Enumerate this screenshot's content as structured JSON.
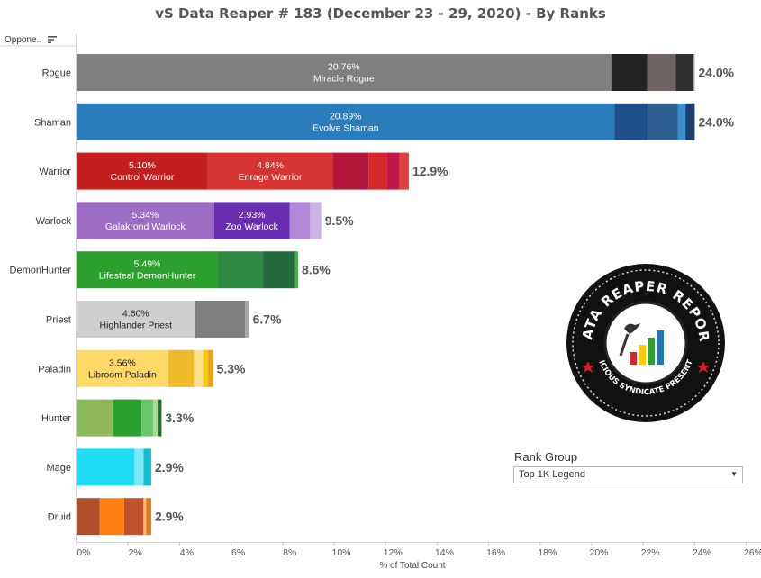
{
  "title": "vS Data Reaper #  183 (December 23 - 29, 2020) - By Ranks",
  "row_header": "Oppone..",
  "rank_group": {
    "label": "Rank Group",
    "selected": "Top 1K Legend"
  },
  "logo": {
    "text_top": "DATA REAPER REPORT",
    "text_bottom": "VICIOUS SYNDICATE PRESENTS"
  },
  "chart_data": {
    "type": "bar",
    "orientation": "horizontal",
    "stacked": true,
    "title": "vS Data Reaper #  183 (December 23 - 29, 2020) - By Ranks",
    "xlabel": "% of Total Count",
    "ylabel": "",
    "xlim": [
      0,
      26
    ],
    "xticks": [
      "0%",
      "2%",
      "4%",
      "6%",
      "8%",
      "10%",
      "12%",
      "14%",
      "16%",
      "18%",
      "20%",
      "22%",
      "24%",
      "26%"
    ],
    "grid": false,
    "categories": [
      "Rogue",
      "Shaman",
      "Warrior",
      "Warlock",
      "DemonHunter",
      "Priest",
      "Paladin",
      "Hunter",
      "Mage",
      "Druid"
    ],
    "totals": [
      "24.0%",
      "24.0%",
      "12.9%",
      "9.5%",
      "8.6%",
      "6.7%",
      "5.3%",
      "3.3%",
      "2.9%",
      "2.9%"
    ],
    "rows": [
      {
        "segments": [
          {
            "value": 20.76,
            "color": "#7f7f7f",
            "label_pct": "20.76%",
            "label_name": "Miracle Rogue",
            "text_color": "#ffffff"
          },
          {
            "value": 1.4,
            "color": "#222222"
          },
          {
            "value": 1.1,
            "color": "#6e6462"
          },
          {
            "value": 0.7,
            "color": "#2f2f2f"
          },
          {
            "value": 0.04,
            "color": "#aaaaaa"
          }
        ]
      },
      {
        "segments": [
          {
            "value": 20.89,
            "color": "#2a7cba",
            "label_pct": "20.89%",
            "label_name": "Evolve Shaman",
            "text_color": "#ffffff"
          },
          {
            "value": 1.3,
            "color": "#1f4e8c"
          },
          {
            "value": 1.15,
            "color": "#2e5e90"
          },
          {
            "value": 0.3,
            "color": "#3a8fd0"
          },
          {
            "value": 0.36,
            "color": "#1c3f6e"
          }
        ]
      },
      {
        "segments": [
          {
            "value": 5.1,
            "color": "#c41e1e",
            "label_pct": "5.10%",
            "label_name": "Control Warrior",
            "text_color": "#ffffff"
          },
          {
            "value": 4.84,
            "color": "#d63333",
            "label_pct": "4.84%",
            "label_name": "Enrage Warrior",
            "text_color": "#ffffff"
          },
          {
            "value": 1.4,
            "color": "#b2173a"
          },
          {
            "value": 0.7,
            "color": "#d62828"
          },
          {
            "value": 0.5,
            "color": "#c0184a"
          },
          {
            "value": 0.36,
            "color": "#e04040"
          }
        ]
      },
      {
        "segments": [
          {
            "value": 5.34,
            "color": "#9d6cc5",
            "label_pct": "5.34%",
            "label_name": "Galakrond Warlock",
            "text_color": "#ffffff"
          },
          {
            "value": 2.93,
            "color": "#6a2fb0",
            "label_pct": "2.93%",
            "label_name": "Zoo Warlock",
            "text_color": "#ffffff"
          },
          {
            "value": 0.8,
            "color": "#b289d6"
          },
          {
            "value": 0.43,
            "color": "#cdb2e6"
          }
        ]
      },
      {
        "segments": [
          {
            "value": 5.49,
            "color": "#2ca02c",
            "label_pct": "5.49%",
            "label_name": "Lifesteal DemonHunter",
            "text_color": "#ffffff"
          },
          {
            "value": 1.75,
            "color": "#2f8a44"
          },
          {
            "value": 1.25,
            "color": "#236b3a"
          },
          {
            "value": 0.11,
            "color": "#3fb04a"
          }
        ]
      },
      {
        "segments": [
          {
            "value": 4.6,
            "color": "#cfcfcf",
            "label_pct": "4.60%",
            "label_name": "Highlander Priest",
            "text_color": "#222222"
          },
          {
            "value": 1.95,
            "color": "#7f7f7f"
          },
          {
            "value": 0.15,
            "color": "#a8a8a8"
          }
        ]
      },
      {
        "segments": [
          {
            "value": 3.56,
            "color": "#ffd966",
            "label_pct": "3.56%",
            "label_name": "Libroom Paladin",
            "text_color": "#222222"
          },
          {
            "value": 1.0,
            "color": "#f0b92a"
          },
          {
            "value": 0.35,
            "color": "#ffe28a"
          },
          {
            "value": 0.2,
            "color": "#f5c518"
          },
          {
            "value": 0.19,
            "color": "#e8a317"
          }
        ]
      },
      {
        "segments": [
          {
            "value": 1.42,
            "color": "#8fba5c"
          },
          {
            "value": 1.1,
            "color": "#2ca02c"
          },
          {
            "value": 0.45,
            "color": "#6cc56c"
          },
          {
            "value": 0.18,
            "color": "#a6d99a"
          },
          {
            "value": 0.15,
            "color": "#1f6b30"
          }
        ]
      },
      {
        "segments": [
          {
            "value": 2.25,
            "color": "#1fddf5"
          },
          {
            "value": 0.35,
            "color": "#7ce8f5"
          },
          {
            "value": 0.3,
            "color": "#17becf"
          }
        ]
      },
      {
        "segments": [
          {
            "value": 0.9,
            "color": "#b0502a"
          },
          {
            "value": 0.95,
            "color": "#ff7f0e"
          },
          {
            "value": 0.75,
            "color": "#c0532b"
          },
          {
            "value": 0.1,
            "color": "#ffbb78"
          },
          {
            "value": 0.2,
            "color": "#e07b20"
          }
        ]
      }
    ]
  }
}
